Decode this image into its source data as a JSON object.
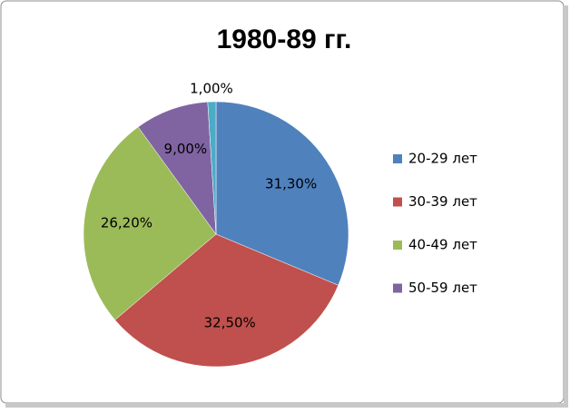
{
  "chart_data": {
    "type": "pie",
    "title": "1980-89 гг.",
    "categories": [
      "20-29 лет",
      "30-39 лет",
      "40-49 лет",
      "50-59 лет",
      null
    ],
    "values": [
      31.3,
      32.5,
      26.2,
      9.0,
      1.0
    ],
    "value_labels": [
      "31,30%",
      "32,50%",
      "26,20%",
      "9,00%",
      "1,00%"
    ],
    "colors": [
      "#4f81bd",
      "#c0504d",
      "#9bbb59",
      "#8064a2",
      "#4bacc6"
    ],
    "legend": "right"
  }
}
